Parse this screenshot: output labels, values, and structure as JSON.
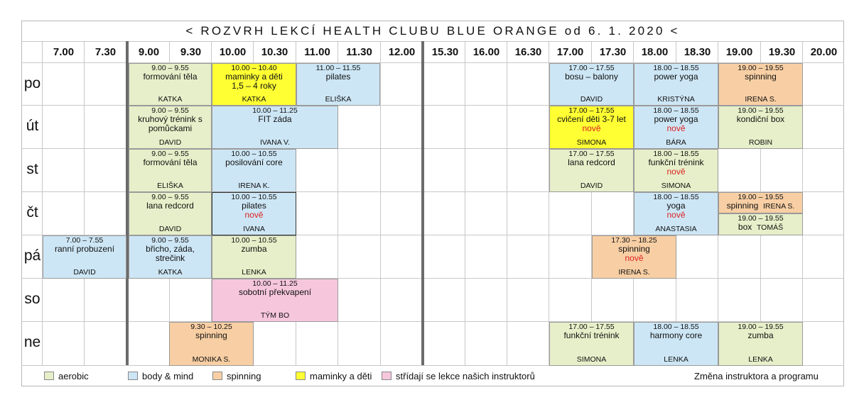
{
  "title": "< ROZVRH LEKCÍ HEALTH CLUBU BLUE ORANGE od 6. 1. 2020 <",
  "times": [
    "7.00",
    "7.30",
    "9.00",
    "9.30",
    "10.00",
    "10.30",
    "11.00",
    "11.30",
    "12.00",
    "15.30",
    "16.00",
    "16.30",
    "17.00",
    "17.30",
    "18.00",
    "18.30",
    "19.00",
    "19.30",
    "20.00"
  ],
  "days": [
    "po",
    "út",
    "st",
    "čt",
    "pá",
    "so",
    "ne"
  ],
  "classes": {
    "po_formovani": {
      "time": "9.00 – 9.55",
      "name": "formování těla",
      "instructor": "KATKA"
    },
    "po_maminky": {
      "time": "10.00 – 10.40",
      "name": "maminky a děti 1,5 – 4 roky",
      "instructor": "KATKA"
    },
    "po_pilates": {
      "time": "11.00 – 11.55",
      "name": "pilates",
      "instructor": "ELIŠKA"
    },
    "po_bosu": {
      "time": "17.00 – 17.55",
      "name": "bosu – balony",
      "instructor": "DAVID"
    },
    "po_poweryoga": {
      "time": "18.00 – 18.55",
      "name": "power yoga",
      "instructor": "KRISTÝNA"
    },
    "po_spinning": {
      "time": "19.00 – 19.55",
      "name": "spinning",
      "instructor": "IRENA S."
    },
    "ut_kruhovy": {
      "time": "9.00 – 9.55",
      "name": "kruhový trénink s pomůckami",
      "instructor": "DAVID"
    },
    "ut_fitzada": {
      "time": "10.00 – 11.25",
      "name": "FIT záda",
      "instructor": "IVANA V."
    },
    "ut_cviceni": {
      "time": "17.00 – 17.55",
      "name": "cvičení děti 3-7 let",
      "new": "nově",
      "instructor": "SIMONA"
    },
    "ut_poweryoga": {
      "time": "18.00 – 18.55",
      "name": "power yoga",
      "new": "nově",
      "instructor": "BÁRA"
    },
    "ut_kondicni": {
      "time": "19.00 – 19.55",
      "name": "kondiční box",
      "instructor": "ROBIN"
    },
    "st_formovani": {
      "time": "9.00 – 9.55",
      "name": "formování těla",
      "instructor": "ELIŠKA"
    },
    "st_posilovani": {
      "time": "10.00 – 10.55",
      "name": "posilování core",
      "instructor": "IRENA K."
    },
    "st_lana": {
      "time": "17.00 – 17.55",
      "name": "lana redcord",
      "instructor": "DAVID"
    },
    "st_funkcni": {
      "time": "18.00 – 18.55",
      "name": "funkční trénink",
      "new": "nově",
      "instructor": "SIMONA"
    },
    "ct_lana": {
      "time": "9.00 – 9.55",
      "name": "lana redcord",
      "instructor": "DAVID"
    },
    "ct_pilates": {
      "time": "10.00 – 10.55",
      "name": "pilates",
      "new": "nově",
      "instructor": "IVANA"
    },
    "ct_yoga": {
      "time": "18.00 – 18.55",
      "name": "yoga",
      "new": "nově",
      "instructor": "ANASTASIA"
    },
    "ct_spinning": {
      "time": "19.00 – 19.55",
      "name": "spinning",
      "instructor": "IRENA S."
    },
    "ct_box": {
      "time": "19.00 – 19.55",
      "name": "box",
      "instructor": "TOMÁŠ"
    },
    "pa_ranni": {
      "time": "7.00 – 7.55",
      "name": "ranní probuzení",
      "instructor": "DAVID"
    },
    "pa_bricho": {
      "time": "9.00 – 9.55",
      "name": "břicho, záda, strečink",
      "instructor": "KATKA"
    },
    "pa_zumba": {
      "time": "10.00 – 10.55",
      "name": "zumba",
      "instructor": "LENKA"
    },
    "pa_spinning": {
      "time": "17.30 – 18.25",
      "name": "spinning",
      "new": "nově",
      "instructor": "IRENA S."
    },
    "so_sobotni": {
      "time": "10.00 – 11.25",
      "name": "sobotní překvapení",
      "instructor": "TÝM BO"
    },
    "ne_spinning": {
      "time": "9.30 – 10.25",
      "name": "spinning",
      "instructor": "MONIKA S."
    },
    "ne_funkcni": {
      "time": "17.00 – 17.55",
      "name": "funkční trénink",
      "instructor": "SIMONA"
    },
    "ne_harmony": {
      "time": "18.00 – 18.55",
      "name": "harmony core",
      "instructor": "LENKA"
    },
    "ne_zumba": {
      "time": "19.00 – 19.55",
      "name": "zumba",
      "instructor": "LENKA"
    }
  },
  "legend": {
    "aerobic": "aerobic",
    "bodymind": "body & mind",
    "spinning": "spinning",
    "mothers": "maminky a děti",
    "alternate": "střídají se lekce našich instruktorů",
    "note": "Změna instruktora a programu"
  },
  "colors": {
    "aerobic": "#e6efc9",
    "bodymind": "#cde6f5",
    "spinning": "#f8cfa4",
    "mothers": "#ffff33",
    "alternate": "#f6c6dd",
    "new": "#dd2222"
  }
}
